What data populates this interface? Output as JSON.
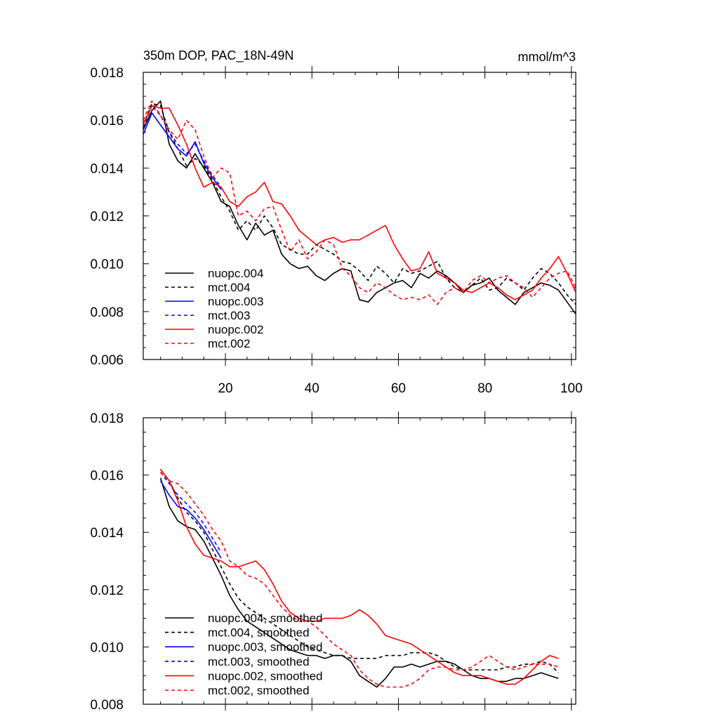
{
  "chart_data": [
    {
      "type": "line",
      "title": "350m DOP, PAC_18N-49N",
      "units": "mmol/m^3",
      "xlabel": "",
      "ylabel": "",
      "xlim": [
        1,
        101
      ],
      "ylim": [
        0.006,
        0.018
      ],
      "x_ticks": [
        20,
        40,
        60,
        80,
        100
      ],
      "x_tick_labels": [
        "20",
        "40",
        "60",
        "80",
        "100"
      ],
      "y_ticks": [
        0.006,
        0.008,
        0.01,
        0.012,
        0.014,
        0.016,
        0.018
      ],
      "y_tick_labels": [
        "0.006",
        "0.008",
        "0.010",
        "0.012",
        "0.014",
        "0.016",
        "0.018"
      ],
      "legend_position": "bottom-left",
      "series": [
        {
          "name": "nuopc.004",
          "color": "#000000",
          "dash": "solid",
          "x": [
            1,
            3,
            5,
            7,
            9,
            11,
            13,
            15,
            17,
            19,
            21,
            23,
            25,
            27,
            29,
            31,
            33,
            35,
            37,
            39,
            41,
            43,
            45,
            47,
            49,
            51,
            53,
            55,
            57,
            59,
            61,
            63,
            65,
            67,
            69,
            71,
            73,
            75,
            77,
            79,
            81,
            83,
            85,
            87,
            89,
            91,
            93,
            95,
            97,
            99,
            101
          ],
          "y": [
            0.0156,
            0.0164,
            0.0168,
            0.015,
            0.0143,
            0.014,
            0.0146,
            0.014,
            0.0134,
            0.0126,
            0.0124,
            0.0116,
            0.011,
            0.0117,
            0.0112,
            0.0114,
            0.0104,
            0.01,
            0.0098,
            0.0099,
            0.0095,
            0.0093,
            0.0096,
            0.0098,
            0.0097,
            0.0085,
            0.0084,
            0.0088,
            0.009,
            0.0092,
            0.0093,
            0.009,
            0.0096,
            0.0094,
            0.0097,
            0.0095,
            0.0092,
            0.0088,
            0.0091,
            0.0092,
            0.0094,
            0.0089,
            0.0086,
            0.0083,
            0.0088,
            0.009,
            0.0092,
            0.0091,
            0.0089,
            0.0084,
            0.0079
          ]
        },
        {
          "name": "mct.004",
          "color": "#000000",
          "dash": "dashed",
          "x": [
            1,
            3,
            5,
            7,
            9,
            11,
            13,
            15,
            17,
            19,
            21,
            23,
            25,
            27,
            29,
            31,
            33,
            35,
            37,
            39,
            41,
            43,
            45,
            47,
            49,
            51,
            53,
            55,
            57,
            59,
            61,
            63,
            65,
            67,
            69,
            71,
            73,
            75,
            77,
            79,
            81,
            83,
            85,
            87,
            89,
            91,
            93,
            95,
            97,
            99,
            101
          ],
          "y": [
            0.0158,
            0.0167,
            0.0166,
            0.0155,
            0.0148,
            0.0141,
            0.0144,
            0.0141,
            0.0135,
            0.0128,
            0.0122,
            0.0114,
            0.0118,
            0.0114,
            0.012,
            0.0115,
            0.0108,
            0.0106,
            0.0104,
            0.0104,
            0.0108,
            0.0106,
            0.0104,
            0.0101,
            0.01,
            0.0097,
            0.0093,
            0.0099,
            0.0096,
            0.0092,
            0.0098,
            0.0096,
            0.0097,
            0.0099,
            0.0101,
            0.0094,
            0.009,
            0.0088,
            0.0091,
            0.0094,
            0.0089,
            0.009,
            0.0094,
            0.0092,
            0.0089,
            0.0094,
            0.0098,
            0.0096,
            0.0092,
            0.0087,
            0.0083
          ]
        },
        {
          "name": "nuopc.003",
          "color": "#0000ff",
          "dash": "solid",
          "x": [
            1,
            3,
            5,
            7,
            9,
            11,
            13,
            15,
            17,
            19
          ],
          "y": [
            0.0154,
            0.0163,
            0.0158,
            0.0153,
            0.0148,
            0.0145,
            0.0151,
            0.0142,
            0.0136,
            0.0131
          ]
        },
        {
          "name": "mct.003",
          "color": "#0000ff",
          "dash": "dashed",
          "x": [
            1,
            3,
            5,
            7,
            9,
            11,
            13,
            15,
            17,
            19
          ],
          "y": [
            0.0157,
            0.0166,
            0.0162,
            0.0155,
            0.015,
            0.0146,
            0.015,
            0.0143,
            0.0137,
            0.0132
          ]
        },
        {
          "name": "nuopc.002",
          "color": "#ff0000",
          "dash": "solid",
          "x": [
            1,
            3,
            5,
            7,
            9,
            11,
            13,
            15,
            17,
            19,
            21,
            23,
            25,
            27,
            29,
            31,
            33,
            35,
            37,
            39,
            41,
            43,
            45,
            47,
            49,
            51,
            53,
            55,
            57,
            59,
            61,
            63,
            65,
            67,
            69,
            71,
            73,
            75,
            77,
            79,
            81,
            83,
            85,
            87,
            89,
            91,
            93,
            95,
            97,
            99,
            101
          ],
          "y": [
            0.0158,
            0.0166,
            0.0165,
            0.0165,
            0.0158,
            0.015,
            0.014,
            0.0132,
            0.0134,
            0.0132,
            0.0126,
            0.0124,
            0.0128,
            0.013,
            0.0134,
            0.0126,
            0.0125,
            0.012,
            0.0114,
            0.0111,
            0.0108,
            0.011,
            0.0111,
            0.0109,
            0.011,
            0.011,
            0.0112,
            0.0114,
            0.0116,
            0.0108,
            0.0102,
            0.0097,
            0.0098,
            0.0105,
            0.0096,
            0.0094,
            0.0092,
            0.0089,
            0.0088,
            0.009,
            0.0092,
            0.009,
            0.0087,
            0.0085,
            0.0087,
            0.0089,
            0.0094,
            0.0098,
            0.0103,
            0.0096,
            0.0088
          ]
        },
        {
          "name": "mct.002",
          "color": "#ff0000",
          "dash": "dashed",
          "x": [
            1,
            3,
            5,
            7,
            9,
            11,
            13,
            15,
            17,
            19,
            21,
            23,
            25,
            27,
            29,
            31,
            33,
            35,
            37,
            39,
            41,
            43,
            45,
            47,
            49,
            51,
            53,
            55,
            57,
            59,
            61,
            63,
            65,
            67,
            69,
            71,
            73,
            75,
            77,
            79,
            81,
            83,
            85,
            87,
            89,
            91,
            93,
            95,
            97,
            99,
            101
          ],
          "y": [
            0.016,
            0.0168,
            0.0162,
            0.0156,
            0.0152,
            0.016,
            0.0156,
            0.0145,
            0.0136,
            0.014,
            0.0138,
            0.012,
            0.0122,
            0.0118,
            0.0123,
            0.0124,
            0.0114,
            0.0105,
            0.011,
            0.0102,
            0.0105,
            0.011,
            0.0108,
            0.0098,
            0.0095,
            0.009,
            0.0088,
            0.0092,
            0.009,
            0.0087,
            0.0085,
            0.0086,
            0.0085,
            0.0087,
            0.0083,
            0.0088,
            0.009,
            0.0088,
            0.0093,
            0.0095,
            0.0092,
            0.0094,
            0.0095,
            0.0092,
            0.009,
            0.0086,
            0.009,
            0.0094,
            0.0096,
            0.0097,
            0.009
          ]
        }
      ]
    },
    {
      "type": "line",
      "title": "",
      "units": "",
      "xlabel": "",
      "ylabel": "",
      "xlim": [
        1,
        101
      ],
      "ylim": [
        0.008,
        0.018
      ],
      "x_ticks": [
        20,
        40,
        60,
        80,
        100
      ],
      "x_tick_labels": [],
      "y_ticks": [
        0.008,
        0.01,
        0.012,
        0.014,
        0.016,
        0.018
      ],
      "y_tick_labels": [
        "0.008",
        "0.010",
        "0.012",
        "0.014",
        "0.016",
        "0.018"
      ],
      "legend_position": "bottom-left",
      "series": [
        {
          "name": "nuopc.004, smoothed",
          "color": "#000000",
          "dash": "solid",
          "x": [
            5,
            7,
            9,
            11,
            13,
            15,
            17,
            19,
            21,
            23,
            25,
            27,
            29,
            31,
            33,
            35,
            37,
            39,
            41,
            43,
            45,
            47,
            49,
            51,
            53,
            55,
            57,
            59,
            61,
            63,
            65,
            67,
            69,
            71,
            73,
            75,
            77,
            79,
            81,
            83,
            85,
            87,
            89,
            91,
            93,
            95,
            97
          ],
          "y": [
            0.0159,
            0.0149,
            0.0144,
            0.0142,
            0.0141,
            0.0137,
            0.0131,
            0.0125,
            0.0118,
            0.0113,
            0.0109,
            0.0107,
            0.0105,
            0.0103,
            0.0101,
            0.0099,
            0.0098,
            0.0097,
            0.0097,
            0.0096,
            0.0097,
            0.0097,
            0.0095,
            0.009,
            0.0088,
            0.0086,
            0.0089,
            0.0093,
            0.0093,
            0.0094,
            0.0093,
            0.0094,
            0.0095,
            0.0095,
            0.0094,
            0.0092,
            0.009,
            0.0089,
            0.0089,
            0.0088,
            0.0088,
            0.0089,
            0.0089,
            0.009,
            0.0091,
            0.009,
            0.0089
          ]
        },
        {
          "name": "mct.004, smoothed",
          "color": "#000000",
          "dash": "dashed",
          "x": [
            5,
            7,
            9,
            11,
            13,
            15,
            17,
            19,
            21,
            23,
            25,
            27,
            29,
            31,
            33,
            35,
            37,
            39,
            41,
            43,
            45,
            47,
            49,
            51,
            53,
            55,
            57,
            59,
            61,
            63,
            65,
            67,
            69,
            71,
            73,
            75,
            77,
            79,
            81,
            83,
            85,
            87,
            89,
            91,
            93,
            95,
            97
          ],
          "y": [
            0.0162,
            0.0158,
            0.0152,
            0.0147,
            0.0144,
            0.014,
            0.0134,
            0.0128,
            0.0122,
            0.0117,
            0.0114,
            0.0112,
            0.011,
            0.0108,
            0.0106,
            0.0104,
            0.0102,
            0.01,
            0.0099,
            0.0098,
            0.0097,
            0.0097,
            0.0096,
            0.0096,
            0.0096,
            0.0096,
            0.0097,
            0.0097,
            0.0097,
            0.0098,
            0.0098,
            0.0098,
            0.0097,
            0.0095,
            0.0093,
            0.0092,
            0.0092,
            0.0092,
            0.0092,
            0.0092,
            0.0093,
            0.0093,
            0.0094,
            0.0094,
            0.0095,
            0.0094,
            0.0091
          ]
        },
        {
          "name": "nuopc.003, smoothed",
          "color": "#0000ff",
          "dash": "solid",
          "x": [
            5,
            7,
            9,
            11,
            13,
            15,
            17,
            19
          ],
          "y": [
            0.0158,
            0.0153,
            0.0149,
            0.0148,
            0.0145,
            0.0141,
            0.0136,
            0.0131
          ]
        },
        {
          "name": "mct.003, smoothed",
          "color": "#0000ff",
          "dash": "dashed",
          "x": [
            5,
            7,
            9,
            11,
            13,
            15,
            17,
            19
          ],
          "y": [
            0.0161,
            0.0157,
            0.0153,
            0.015,
            0.0147,
            0.0143,
            0.0138,
            0.0133
          ]
        },
        {
          "name": "nuopc.002, smoothed",
          "color": "#ff0000",
          "dash": "solid",
          "x": [
            5,
            7,
            9,
            11,
            13,
            15,
            17,
            19,
            21,
            23,
            25,
            27,
            29,
            31,
            33,
            35,
            37,
            39,
            41,
            43,
            45,
            47,
            49,
            51,
            53,
            55,
            57,
            59,
            61,
            63,
            65,
            67,
            69,
            71,
            73,
            75,
            77,
            79,
            81,
            83,
            85,
            87,
            89,
            91,
            93,
            95,
            97
          ],
          "y": [
            0.0162,
            0.0158,
            0.0151,
            0.0142,
            0.0136,
            0.0132,
            0.0131,
            0.013,
            0.0128,
            0.0128,
            0.0129,
            0.013,
            0.0127,
            0.0122,
            0.0116,
            0.0112,
            0.011,
            0.0109,
            0.0109,
            0.011,
            0.011,
            0.011,
            0.0111,
            0.0113,
            0.0111,
            0.0108,
            0.0104,
            0.0103,
            0.0102,
            0.0101,
            0.0099,
            0.0097,
            0.0095,
            0.0093,
            0.0091,
            0.009,
            0.009,
            0.009,
            0.0089,
            0.0088,
            0.0087,
            0.0087,
            0.0089,
            0.0092,
            0.0095,
            0.0097,
            0.0096
          ]
        },
        {
          "name": "mct.002, smoothed",
          "color": "#ff0000",
          "dash": "dashed",
          "x": [
            5,
            7,
            9,
            11,
            13,
            15,
            17,
            19,
            21,
            23,
            25,
            27,
            29,
            31,
            33,
            35,
            37,
            39,
            41,
            43,
            45,
            47,
            49,
            51,
            53,
            55,
            57,
            59,
            61,
            63,
            65,
            67,
            69,
            71,
            73,
            75,
            77,
            79,
            81,
            83,
            85,
            87,
            89,
            91,
            93,
            95,
            97
          ],
          "y": [
            0.0161,
            0.0158,
            0.0157,
            0.0154,
            0.015,
            0.0146,
            0.0141,
            0.0137,
            0.013,
            0.0128,
            0.0125,
            0.0124,
            0.0122,
            0.0118,
            0.0114,
            0.0111,
            0.0109,
            0.0109,
            0.0107,
            0.0104,
            0.0101,
            0.0099,
            0.0097,
            0.0092,
            0.0089,
            0.0087,
            0.0086,
            0.0086,
            0.0086,
            0.0087,
            0.0089,
            0.0092,
            0.0093,
            0.0093,
            0.0092,
            0.0092,
            0.0093,
            0.0095,
            0.0097,
            0.0095,
            0.0093,
            0.0092,
            0.0093,
            0.0094,
            0.0094,
            0.0094,
            0.0093
          ]
        }
      ]
    }
  ]
}
